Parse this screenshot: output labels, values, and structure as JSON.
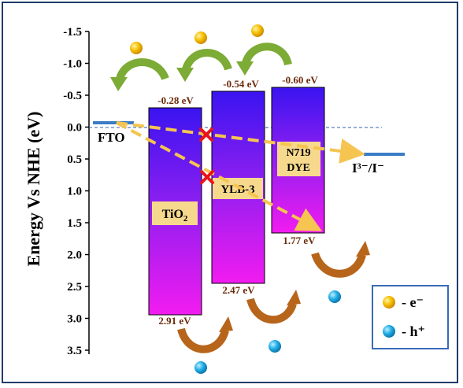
{
  "diagram": {
    "y_axis": {
      "label": "Energy Vs NHE (eV)",
      "ticks": [
        "-1.5",
        "-1.0",
        "-0.5",
        "0.0",
        "0.5",
        "1.0",
        "1.5",
        "2.0",
        "2.5",
        "3.0",
        "3.5"
      ]
    },
    "fto_label": "FTO",
    "redox_label": "I³⁻/I⁻",
    "blocks": [
      {
        "name": "TiO2",
        "label_main": "TiO",
        "label_sub": "2",
        "top_label": "-0.28 eV",
        "bottom_label": "2.91 eV",
        "cb": -0.28,
        "vb": 2.91
      },
      {
        "name": "YLB-3",
        "label_main": "YLB-3",
        "label_sub": "",
        "top_label": "-0.54 eV",
        "bottom_label": "2.47 eV",
        "cb": -0.54,
        "vb": 2.47
      },
      {
        "name": "N719 DYE",
        "label_line1": "N719",
        "label_line2": "DYE",
        "top_label": "-0.60 eV",
        "bottom_label": "1.77 eV",
        "cb": -0.6,
        "vb": 1.77
      }
    ],
    "legend": {
      "electron_label": "- e⁻",
      "hole_label": "- h⁺"
    },
    "colors": {
      "block_top": "#3a14f0",
      "block_bottom": "#f21cf0",
      "label_box": "#f7d98e",
      "dashed_arrow": "#f5c451",
      "cross": "#e8141c",
      "green_arrow": "#7cab36",
      "brown_arrow": "#b8651c",
      "electron": "#f4b400",
      "hole": "#1fa9e1",
      "fto_line": "#3a7cc4",
      "frame": "#1f3b6b"
    }
  }
}
